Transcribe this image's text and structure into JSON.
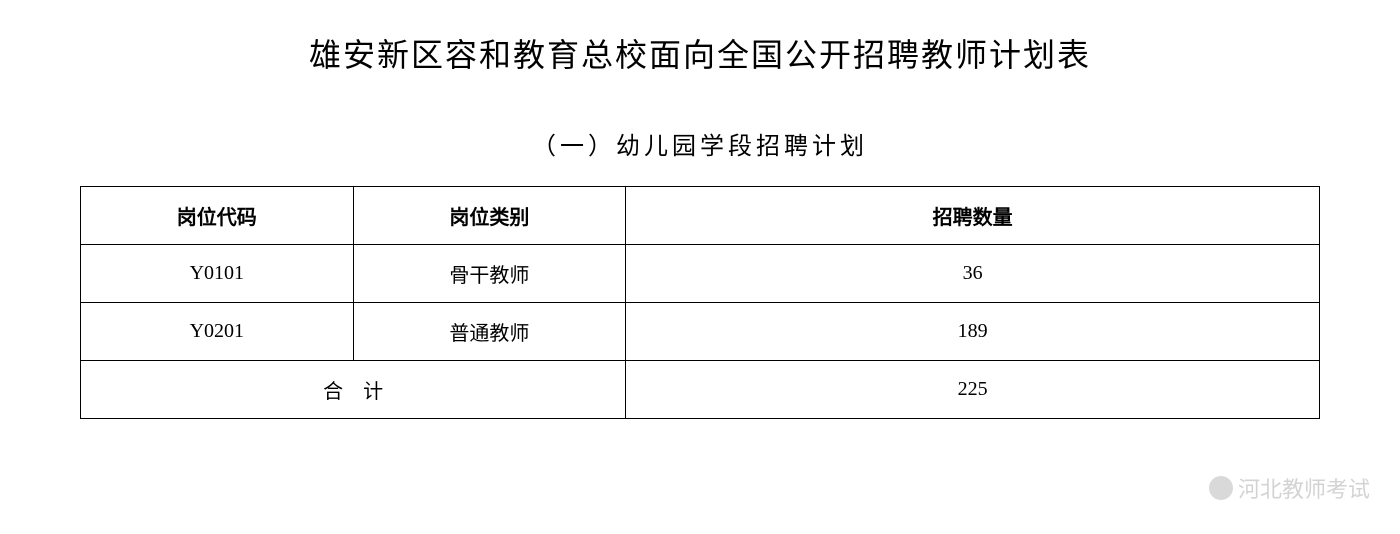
{
  "title": "雄安新区容和教育总校面向全国公开招聘教师计划表",
  "subtitle": "（一）幼儿园学段招聘计划",
  "table": {
    "columns": [
      "岗位代码",
      "岗位类别",
      "招聘数量"
    ],
    "rows": [
      [
        "Y0101",
        "骨干教师",
        "36"
      ],
      [
        "Y0201",
        "普通教师",
        "189"
      ]
    ],
    "total_label": "合计",
    "total_value": "225"
  },
  "watermark": "河北教师考试",
  "styling": {
    "background_color": "#ffffff",
    "border_color": "#000000",
    "text_color": "#000000",
    "title_fontsize": 32,
    "subtitle_fontsize": 24,
    "table_fontsize": 20,
    "watermark_color": "rgba(128,128,128,0.35)"
  }
}
